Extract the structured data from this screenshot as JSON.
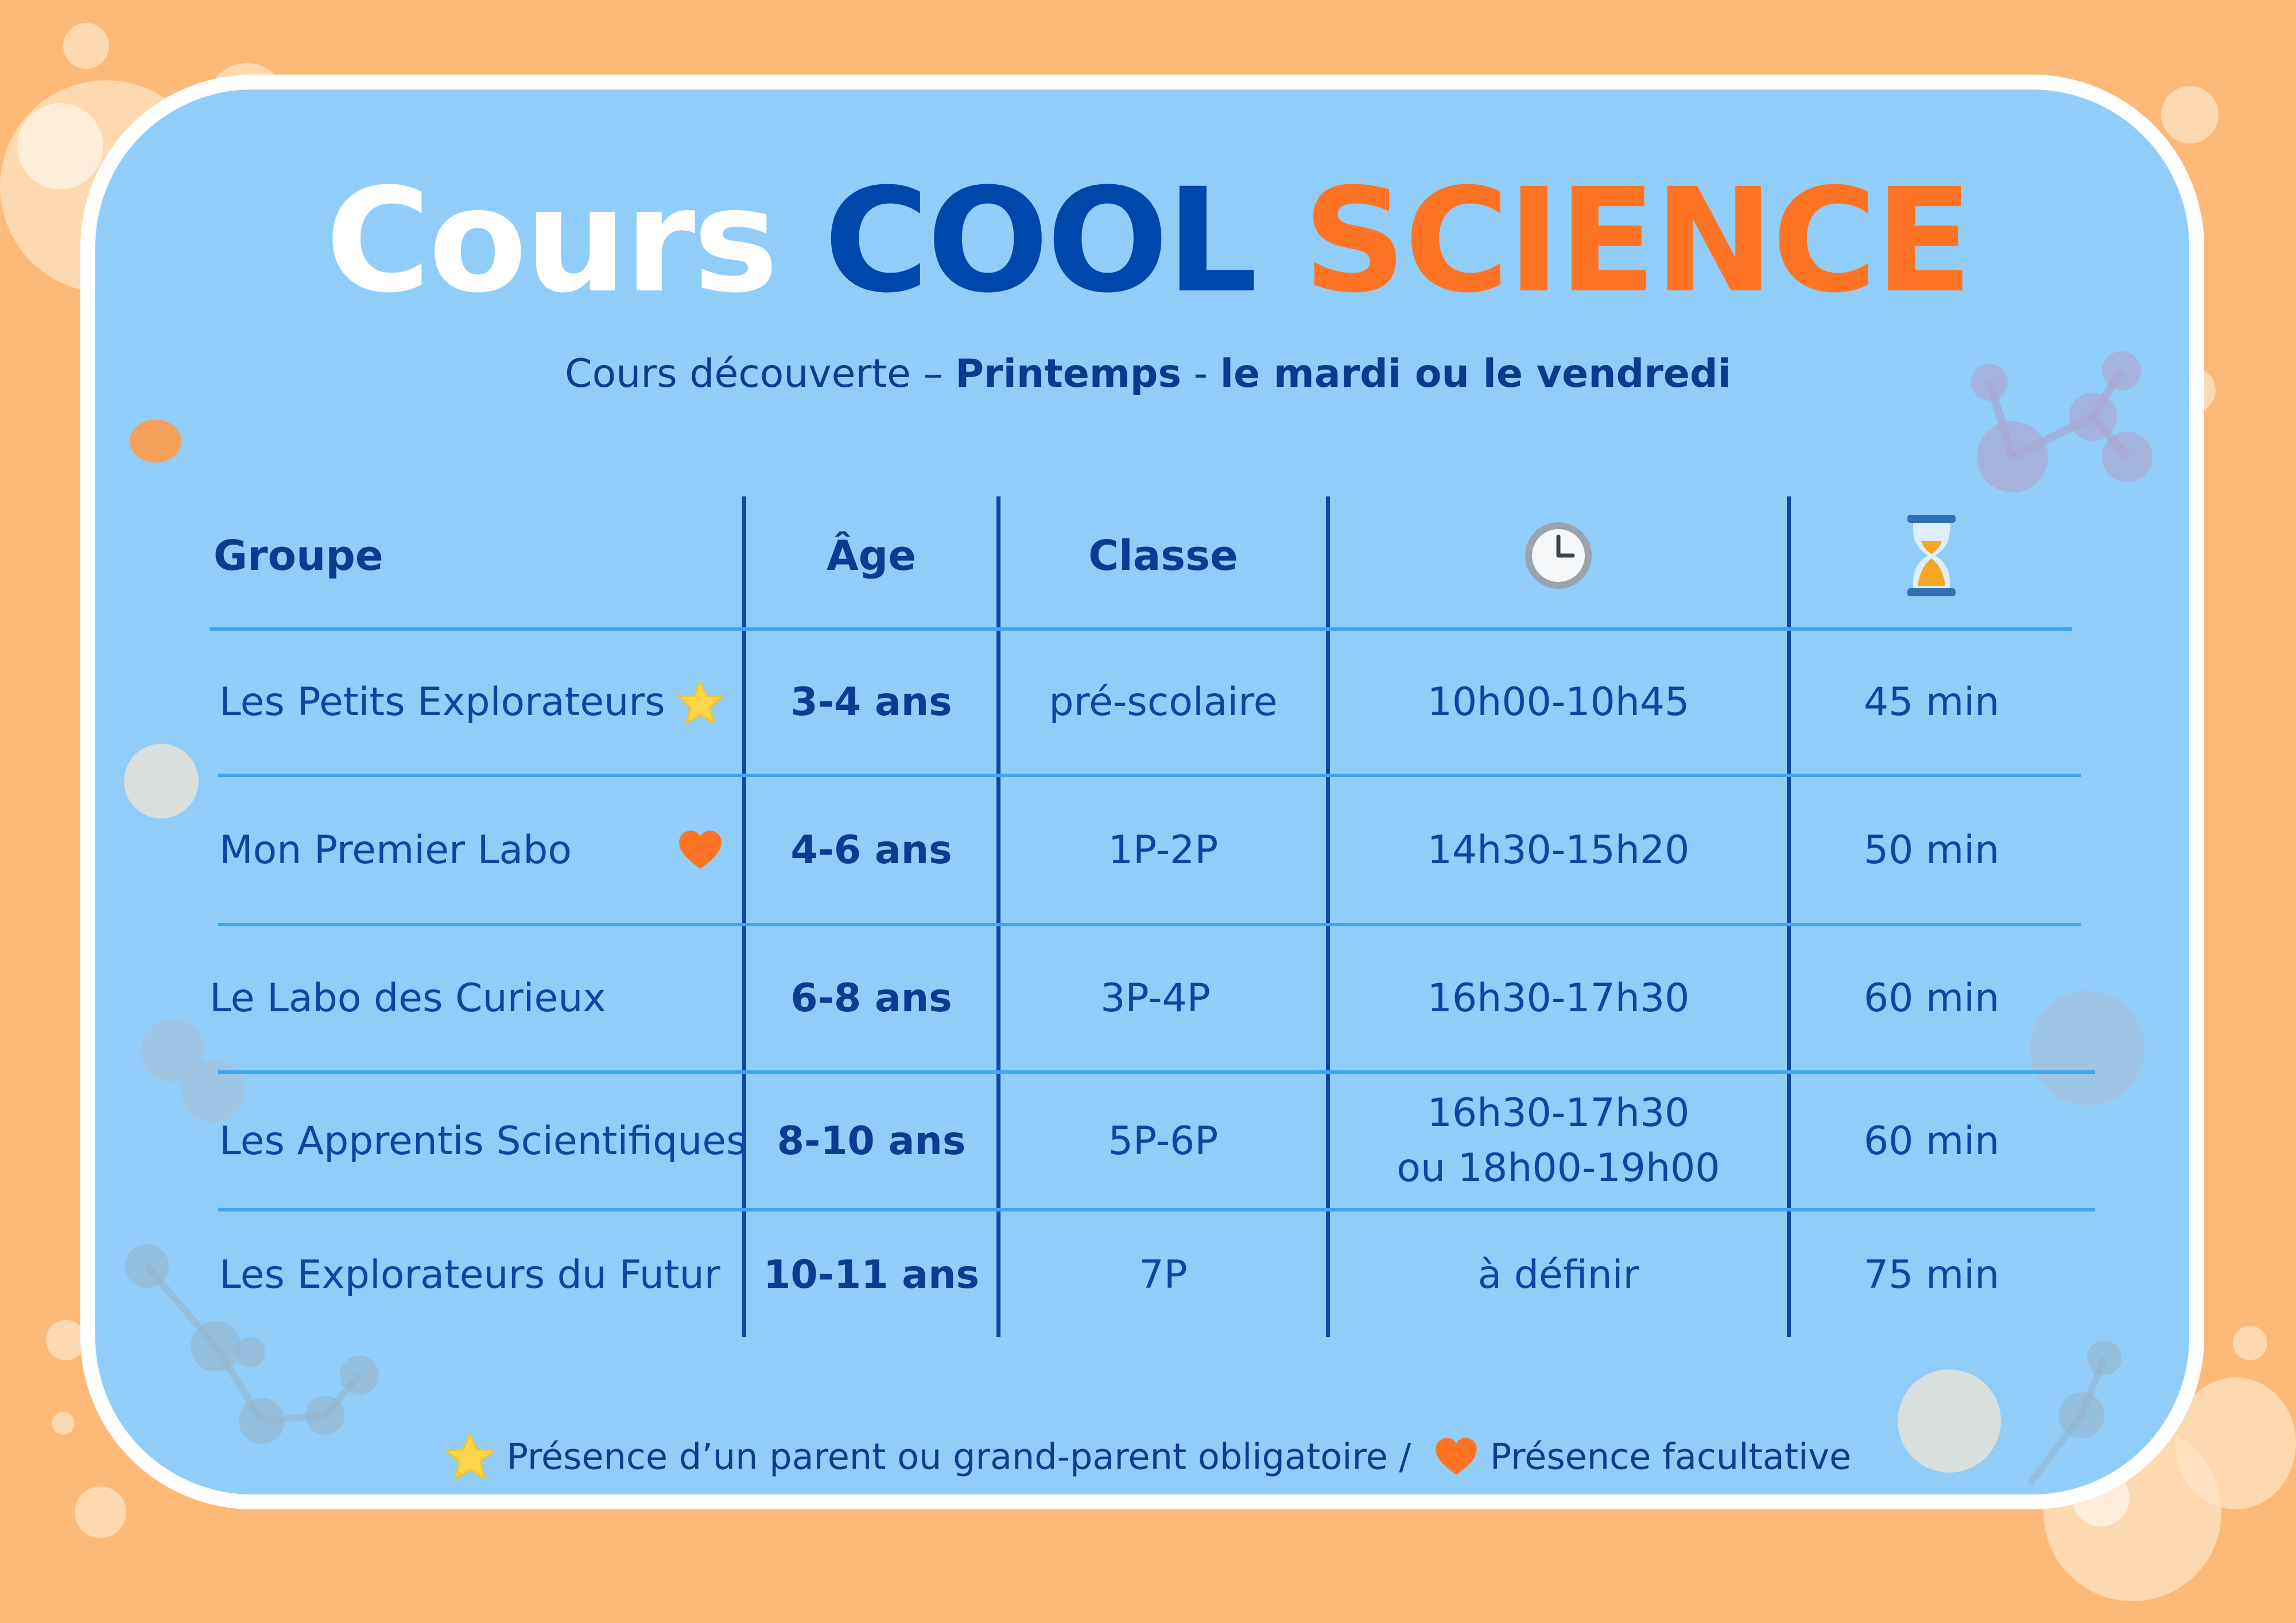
{
  "title": {
    "part1": "Cours",
    "part2": "COOL",
    "part3": "SCIENCE"
  },
  "subtitle": {
    "lead": "Cours découverte –",
    "season": "Printemps",
    "sep": "-",
    "days": "le mardi ou le vendredi"
  },
  "table": {
    "headers": {
      "group": "Groupe",
      "age": "Âge",
      "class": "Classe",
      "time_icon": "clock-icon",
      "duration_icon": "hourglass-icon"
    },
    "rows": [
      {
        "group": "Les Petits Explorateurs",
        "marker": "star-icon",
        "age": "3-4 ans",
        "class": "pré-scolaire",
        "time": "10h00-10h45",
        "time2": "",
        "duration": "45 min"
      },
      {
        "group": "Mon Premier Labo",
        "marker": "heart-icon",
        "age": "4-6 ans",
        "class": "1P-2P",
        "time": "14h30-15h20",
        "time2": "",
        "duration": "50 min"
      },
      {
        "group": "Le Labo des Curieux",
        "marker": "",
        "age": "6-8 ans",
        "class": "3P-4P",
        "time": "16h30-17h30",
        "time2": "",
        "duration": "60 min"
      },
      {
        "group": "Les Apprentis Scientifiques",
        "marker": "",
        "age": "8-10 ans",
        "class": "5P-6P",
        "time": "16h30-17h30",
        "time2": "ou 18h00-19h00",
        "duration": "60 min"
      },
      {
        "group": "Les Explorateurs du Futur",
        "marker": "",
        "age": "10-11 ans",
        "class": "7P",
        "time": "à définir",
        "time2": "",
        "duration": "75 min"
      }
    ]
  },
  "legend": {
    "star_text": "Présence d’un parent ou grand-parent obligatoire /",
    "heart_text": "Présence facultative"
  },
  "colors": {
    "background": "#FDB977",
    "card": "#90CDF9",
    "navy": "#0047AB",
    "orange": "#FF7424",
    "star": "#FFD54A",
    "heart": "#FF7424"
  }
}
